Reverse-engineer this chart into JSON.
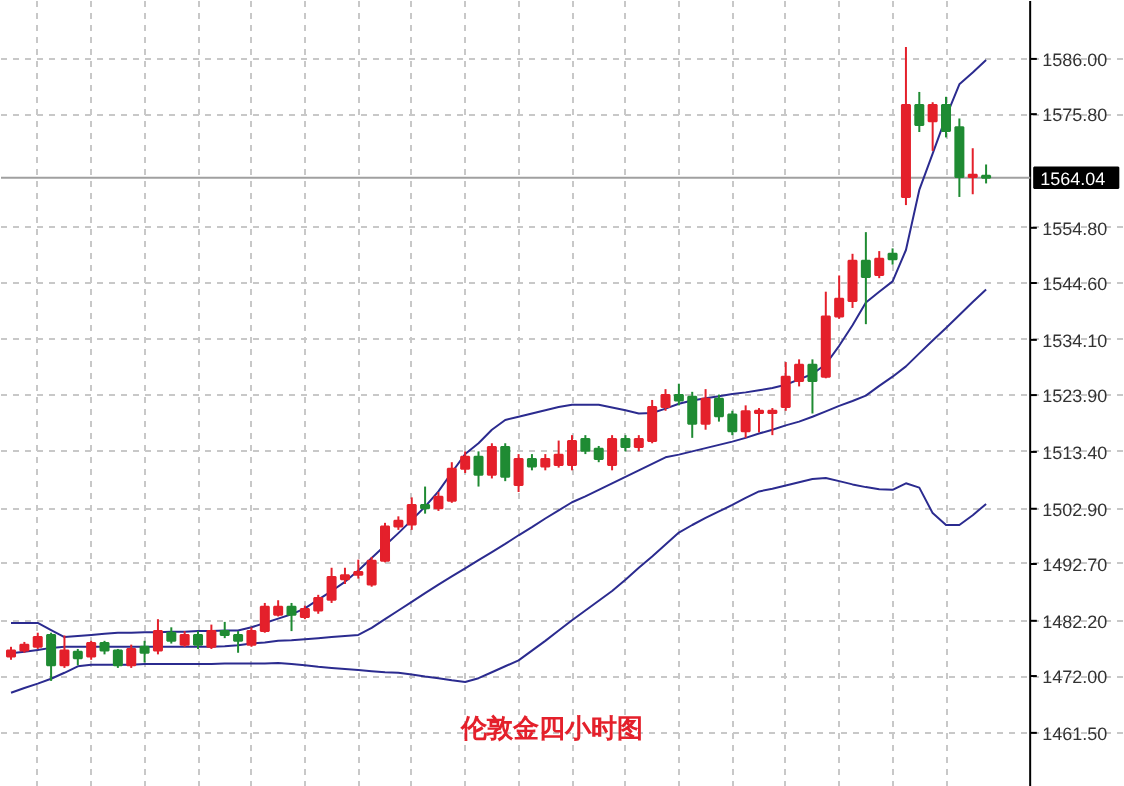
{
  "chart_data": {
    "type": "candlestick",
    "categories": [
      null,
      null,
      null,
      null,
      null,
      null,
      null,
      null,
      null,
      null,
      null,
      null,
      null,
      null,
      null,
      null,
      null,
      null,
      null,
      null,
      null,
      null,
      null,
      null,
      null,
      null,
      null,
      null,
      null,
      null,
      null,
      null,
      null,
      null,
      null,
      null,
      null,
      null,
      null,
      null,
      null,
      null,
      null,
      null,
      null,
      null,
      null,
      null,
      null,
      null,
      null,
      null,
      null,
      null,
      null,
      null,
      null,
      null,
      null,
      null,
      null,
      null,
      null,
      null,
      null,
      null,
      null,
      null,
      null,
      null,
      null,
      null,
      null,
      null
    ],
    "ohlc": [
      [
        1475.6,
        1477.4,
        1475.0,
        1476.7
      ],
      [
        1476.7,
        1478.3,
        1476.3,
        1477.8
      ],
      [
        1477.4,
        1480.0,
        1477.0,
        1479.2
      ],
      [
        1479.6,
        1480.0,
        1471.1,
        1474.0
      ],
      [
        1474.0,
        1479.5,
        1473.5,
        1476.7
      ],
      [
        1476.5,
        1477.0,
        1474.0,
        1475.3
      ],
      [
        1475.6,
        1478.5,
        1475.0,
        1478.1
      ],
      [
        1478.1,
        1478.5,
        1476.0,
        1476.7
      ],
      [
        1476.7,
        1477.0,
        1473.5,
        1474.0
      ],
      [
        1474.0,
        1477.8,
        1473.5,
        1477.0
      ],
      [
        1477.4,
        1478.5,
        1474.5,
        1476.3
      ],
      [
        1476.7,
        1482.5,
        1476.0,
        1480.3
      ],
      [
        1480.0,
        1481.0,
        1478.0,
        1478.5
      ],
      [
        1477.8,
        1480.3,
        1477.4,
        1479.6
      ],
      [
        1479.6,
        1480.3,
        1477.0,
        1477.8
      ],
      [
        1477.4,
        1481.5,
        1477.0,
        1480.3
      ],
      [
        1480.3,
        1482.0,
        1479.0,
        1479.6
      ],
      [
        1479.6,
        1480.3,
        1476.3,
        1478.5
      ],
      [
        1477.8,
        1481.0,
        1477.4,
        1480.3
      ],
      [
        1480.3,
        1485.5,
        1480.0,
        1484.8
      ],
      [
        1483.3,
        1486.0,
        1483.0,
        1484.8
      ],
      [
        1484.8,
        1485.5,
        1480.3,
        1483.3
      ],
      [
        1482.9,
        1485.0,
        1482.5,
        1484.4
      ],
      [
        1484.1,
        1487.0,
        1483.5,
        1486.4
      ],
      [
        1486.1,
        1492.0,
        1485.5,
        1490.3
      ],
      [
        1489.9,
        1492.0,
        1489.0,
        1490.6
      ],
      [
        1490.7,
        1493.5,
        1490.0,
        1491.2
      ],
      [
        1488.9,
        1494.0,
        1488.5,
        1493.3
      ],
      [
        1493.3,
        1500.3,
        1493.0,
        1499.6
      ],
      [
        1499.6,
        1501.5,
        1499.0,
        1500.7
      ],
      [
        1500.0,
        1505.0,
        1499.0,
        1503.6
      ],
      [
        1503.6,
        1507.0,
        1502.0,
        1503.0
      ],
      [
        1503.0,
        1506.0,
        1502.5,
        1505.1
      ],
      [
        1504.4,
        1511.5,
        1504.0,
        1510.3
      ],
      [
        1510.3,
        1513.5,
        1509.5,
        1512.5
      ],
      [
        1512.5,
        1513.5,
        1507.0,
        1509.2
      ],
      [
        1509.2,
        1515.0,
        1508.5,
        1514.3
      ],
      [
        1514.3,
        1515.0,
        1508.0,
        1508.8
      ],
      [
        1507.3,
        1513.0,
        1506.0,
        1512.1
      ],
      [
        1512.1,
        1513.0,
        1510.0,
        1510.7
      ],
      [
        1510.7,
        1513.0,
        1510.0,
        1512.1
      ],
      [
        1511.0,
        1515.5,
        1510.5,
        1512.9
      ],
      [
        1511.0,
        1516.5,
        1510.0,
        1515.4
      ],
      [
        1515.8,
        1516.5,
        1513.0,
        1513.6
      ],
      [
        1514.0,
        1514.5,
        1511.5,
        1512.1
      ],
      [
        1511.0,
        1516.5,
        1510.0,
        1515.8
      ],
      [
        1515.8,
        1516.5,
        1513.5,
        1514.3
      ],
      [
        1514.3,
        1516.5,
        1513.5,
        1515.8
      ],
      [
        1515.4,
        1523.0,
        1515.0,
        1521.7
      ],
      [
        1521.7,
        1525.0,
        1521.0,
        1523.9
      ],
      [
        1523.9,
        1526.0,
        1522.0,
        1522.9
      ],
      [
        1523.6,
        1524.5,
        1516.0,
        1518.6
      ],
      [
        1518.6,
        1525.0,
        1517.5,
        1523.2
      ],
      [
        1523.2,
        1524.0,
        1519.0,
        1520.0
      ],
      [
        1520.3,
        1521.0,
        1516.5,
        1517.2
      ],
      [
        1517.2,
        1522.0,
        1516.0,
        1520.9
      ],
      [
        1520.6,
        1521.5,
        1517.0,
        1521.0
      ],
      [
        1520.6,
        1521.5,
        1516.5,
        1521.0
      ],
      [
        1521.7,
        1530.0,
        1521.0,
        1527.3
      ],
      [
        1526.5,
        1530.5,
        1525.5,
        1529.5
      ],
      [
        1529.5,
        1530.5,
        1520.5,
        1526.5
      ],
      [
        1527.3,
        1543.0,
        1527.0,
        1538.4
      ],
      [
        1538.4,
        1546.0,
        1538.0,
        1541.7
      ],
      [
        1541.3,
        1550.0,
        1540.0,
        1548.7
      ],
      [
        1548.7,
        1554.0,
        1537.0,
        1545.7
      ],
      [
        1546.1,
        1550.5,
        1545.5,
        1549.1
      ],
      [
        1550.0,
        1551.0,
        1548.0,
        1549.0
      ],
      [
        1560.5,
        1588.2,
        1559.0,
        1577.5
      ],
      [
        1577.5,
        1579.9,
        1572.5,
        1573.8
      ],
      [
        1574.5,
        1578.0,
        1569.0,
        1577.5
      ],
      [
        1577.5,
        1579.0,
        1571.5,
        1572.7
      ],
      [
        1573.4,
        1575.0,
        1560.5,
        1564.2
      ],
      [
        1564.2,
        1569.5,
        1561.0,
        1564.6
      ],
      [
        1564.4,
        1566.5,
        1563.0,
        1564.04
      ]
    ],
    "colors": [
      "#e4202b",
      "#e4202b",
      "#e4202b",
      "#1f8b33",
      "#e4202b",
      "#1f8b33",
      "#e4202b",
      "#1f8b33",
      "#1f8b33",
      "#e4202b",
      "#1f8b33",
      "#e4202b",
      "#1f8b33",
      "#e4202b",
      "#1f8b33",
      "#e4202b",
      "#1f8b33",
      "#1f8b33",
      "#e4202b",
      "#e4202b",
      "#e4202b",
      "#1f8b33",
      "#e4202b",
      "#e4202b",
      "#e4202b",
      "#e4202b",
      "#e4202b",
      "#e4202b",
      "#e4202b",
      "#e4202b",
      "#e4202b",
      "#1f8b33",
      "#e4202b",
      "#e4202b",
      "#e4202b",
      "#1f8b33",
      "#e4202b",
      "#1f8b33",
      "#e4202b",
      "#1f8b33",
      "#e4202b",
      "#e4202b",
      "#e4202b",
      "#1f8b33",
      "#1f8b33",
      "#e4202b",
      "#1f8b33",
      "#e4202b",
      "#e4202b",
      "#e4202b",
      "#1f8b33",
      "#1f8b33",
      "#e4202b",
      "#1f8b33",
      "#1f8b33",
      "#e4202b",
      "#e4202b",
      "#e4202b",
      "#e4202b",
      "#e4202b",
      "#1f8b33",
      "#e4202b",
      "#e4202b",
      "#e4202b",
      "#1f8b33",
      "#e4202b",
      "#1f8b33",
      "#e4202b",
      "#1f8b33",
      "#e4202b",
      "#1f8b33",
      "#1f8b33",
      "#e4202b",
      "#1f8b33"
    ],
    "series": [
      {
        "type": "line",
        "color": "#2b2b8f",
        "values": [
          1481.8,
          1481.8,
          1481.8,
          1480.5,
          1479.2,
          1479.4,
          1479.6,
          1479.8,
          1480.0,
          1480.0,
          1480.1,
          1480.1,
          1480.2,
          1480.2,
          1480.3,
          1480.3,
          1480.4,
          1480.4,
          1481.0,
          1481.8,
          1482.6,
          1483.4,
          1484.5,
          1486.1,
          1487.7,
          1489.4,
          1491.5,
          1493.8,
          1496.1,
          1498.4,
          1500.8,
          1503.3,
          1506.1,
          1509.6,
          1513.0,
          1515.0,
          1517.5,
          1519.3,
          1519.9,
          1520.5,
          1521.1,
          1521.7,
          1522.1,
          1522.1,
          1522.1,
          1521.6,
          1521.1,
          1520.5,
          1520.6,
          1521.4,
          1522.3,
          1522.9,
          1523.3,
          1523.7,
          1524.1,
          1524.4,
          1524.8,
          1525.2,
          1525.8,
          1526.8,
          1527.8,
          1529.6,
          1533.0,
          1536.8,
          1541.0,
          1543.0,
          1544.9,
          1550.7,
          1561.8,
          1568.5,
          1575.3,
          1581.3,
          1583.5,
          1585.8
        ]
      },
      {
        "type": "line",
        "color": "#2b2b8f",
        "values": [
          1476.2,
          1476.5,
          1476.8,
          1477.2,
          1477.4,
          1477.4,
          1477.4,
          1477.4,
          1477.4,
          1477.4,
          1477.4,
          1477.4,
          1477.4,
          1477.4,
          1477.4,
          1477.4,
          1477.5,
          1477.7,
          1478.0,
          1478.2,
          1478.5,
          1478.6,
          1478.8,
          1479.0,
          1479.2,
          1479.4,
          1479.6,
          1480.9,
          1482.5,
          1484.1,
          1485.7,
          1487.3,
          1488.9,
          1490.4,
          1491.9,
          1493.4,
          1494.9,
          1496.4,
          1498.0,
          1499.5,
          1501.1,
          1502.6,
          1504.1,
          1505.2,
          1506.4,
          1507.6,
          1508.8,
          1510.0,
          1511.2,
          1512.4,
          1512.9,
          1513.5,
          1514.1,
          1514.7,
          1515.3,
          1516.0,
          1516.8,
          1517.5,
          1518.3,
          1519.0,
          1519.9,
          1520.9,
          1521.9,
          1522.8,
          1523.8,
          1525.6,
          1527.3,
          1529.2,
          1531.6,
          1534.0,
          1536.3,
          1538.7,
          1541.1,
          1543.4
        ]
      },
      {
        "type": "line",
        "color": "#2b2b8f",
        "values": [
          1468.9,
          1469.8,
          1470.6,
          1471.5,
          1472.6,
          1473.8,
          1474.1,
          1474.1,
          1474.1,
          1474.1,
          1474.2,
          1474.2,
          1474.2,
          1474.2,
          1474.2,
          1474.2,
          1474.3,
          1474.3,
          1474.3,
          1474.3,
          1474.4,
          1474.2,
          1474.0,
          1473.7,
          1473.5,
          1473.3,
          1473.1,
          1472.9,
          1472.7,
          1472.6,
          1472.3,
          1471.9,
          1471.6,
          1471.2,
          1470.9,
          1471.6,
          1472.7,
          1473.8,
          1474.9,
          1476.7,
          1478.5,
          1480.4,
          1482.3,
          1484.1,
          1485.9,
          1487.7,
          1489.8,
          1492.0,
          1494.1,
          1496.3,
          1498.5,
          1499.9,
          1501.2,
          1502.4,
          1503.6,
          1504.9,
          1506.1,
          1506.6,
          1507.2,
          1507.8,
          1508.4,
          1508.6,
          1508.0,
          1507.4,
          1506.9,
          1506.5,
          1506.4,
          1507.6,
          1506.8,
          1502.1,
          1499.9,
          1499.9,
          1501.7,
          1503.8
        ]
      }
    ],
    "ylim": [
      1451.5,
      1596.7
    ],
    "yticks": [
      {
        "value": 1586,
        "label": "1586.00"
      },
      {
        "value": 1575.8,
        "label": "1575.80"
      },
      {
        "value": 1554.8,
        "label": "1554.80"
      },
      {
        "value": 1544.6,
        "label": "1544.60"
      },
      {
        "value": 1534.1,
        "label": "1534.10"
      },
      {
        "value": 1523.9,
        "label": "1523.90"
      },
      {
        "value": 1513.4,
        "label": "1513.40"
      },
      {
        "value": 1502.9,
        "label": "1502.90"
      },
      {
        "value": 1492.7,
        "label": "1492.70"
      },
      {
        "value": 1482.2,
        "label": "1482.20"
      },
      {
        "value": 1472,
        "label": "1472.00"
      },
      {
        "value": 1461.5,
        "label": "1461.50"
      }
    ],
    "tick_labels": "y",
    "grid": true,
    "ref_lines": [
      {
        "axis": "y",
        "value": 1564.04,
        "label": "1564.04",
        "color": "#a0a0a0"
      }
    ],
    "annotations": [
      "伦敦金四小时图"
    ]
  }
}
